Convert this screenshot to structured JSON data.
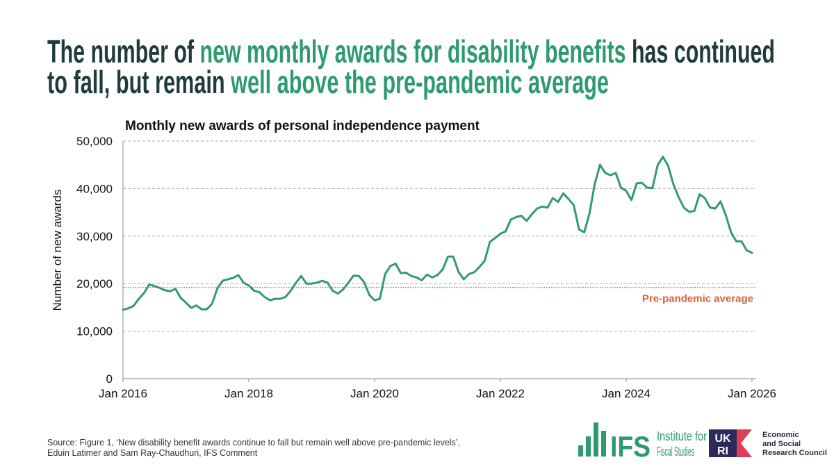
{
  "title_lines": [
    [
      {
        "text": "The number of ",
        "color": "#1f3b3c"
      },
      {
        "text": "new monthly awards for disability benefits",
        "color": "#2e9a6e"
      },
      {
        "text": " has continued",
        "color": "#1f3b3c"
      }
    ],
    [
      {
        "text": "to fall, but remain ",
        "color": "#1f3b3c"
      },
      {
        "text": "well above the pre-pandemic average",
        "color": "#2e9a6e"
      }
    ]
  ],
  "chart_data": {
    "type": "line",
    "title": "Monthly new awards of personal independence payment",
    "ylabel": "Number of new awards",
    "color": "#339a6f",
    "ylim": [
      0,
      50000
    ],
    "yticks": [
      0,
      {
        "value": 10000,
        "label": "10,000"
      },
      {
        "value": 20000,
        "label": "20,000"
      },
      {
        "value": 30000,
        "label": "30,000"
      },
      {
        "value": 40000,
        "label": "40,000"
      },
      {
        "value": 50000,
        "label": "50,000"
      }
    ],
    "xlim": [
      "2016-01",
      "2026-01"
    ],
    "xticks": [
      {
        "value": "2016-01",
        "label": "Jan 2016"
      },
      {
        "value": "2018-01",
        "label": "Jan 2018"
      },
      {
        "value": "2020-01",
        "label": "Jan 2020"
      },
      {
        "value": "2022-01",
        "label": "Jan 2022"
      },
      {
        "value": "2024-01",
        "label": "Jan 2024"
      },
      {
        "value": "2026-01",
        "label": "Jan 2026"
      }
    ],
    "grid": true,
    "x": [
      "2016-01",
      "2016-02",
      "2016-03",
      "2016-04",
      "2016-05",
      "2016-06",
      "2016-07",
      "2016-08",
      "2016-09",
      "2016-10",
      "2016-11",
      "2016-12",
      "2017-01",
      "2017-02",
      "2017-03",
      "2017-04",
      "2017-05",
      "2017-06",
      "2017-07",
      "2017-08",
      "2017-09",
      "2017-10",
      "2017-11",
      "2017-12",
      "2018-01",
      "2018-02",
      "2018-03",
      "2018-04",
      "2018-05",
      "2018-06",
      "2018-07",
      "2018-08",
      "2018-09",
      "2018-10",
      "2018-11",
      "2018-12",
      "2019-01",
      "2019-02",
      "2019-03",
      "2019-04",
      "2019-05",
      "2019-06",
      "2019-07",
      "2019-08",
      "2019-09",
      "2019-10",
      "2019-11",
      "2019-12",
      "2020-01",
      "2020-02",
      "2020-03",
      "2020-04",
      "2020-05",
      "2020-06",
      "2020-07",
      "2020-08",
      "2020-09",
      "2020-10",
      "2020-11",
      "2020-12",
      "2021-01",
      "2021-02",
      "2021-03",
      "2021-04",
      "2021-05",
      "2021-06",
      "2021-07",
      "2021-08",
      "2021-09",
      "2021-10",
      "2021-11",
      "2021-12",
      "2022-01",
      "2022-02",
      "2022-03",
      "2022-04",
      "2022-05",
      "2022-06",
      "2022-07",
      "2022-08",
      "2022-09",
      "2022-10",
      "2022-11",
      "2022-12",
      "2023-01",
      "2023-02",
      "2023-03",
      "2023-04",
      "2023-05",
      "2023-06",
      "2023-07",
      "2023-08",
      "2023-09",
      "2023-10",
      "2023-11",
      "2023-12",
      "2024-01",
      "2024-02",
      "2024-03",
      "2024-04",
      "2024-05",
      "2024-06",
      "2024-07",
      "2024-08",
      "2024-09",
      "2024-10",
      "2024-11",
      "2024-12",
      "2025-01",
      "2025-02",
      "2025-03",
      "2025-04",
      "2025-05",
      "2025-06",
      "2025-07",
      "2025-08",
      "2025-09",
      "2025-10",
      "2025-11",
      "2025-12",
      "2026-01"
    ],
    "values": [
      14500,
      14800,
      15300,
      16800,
      18000,
      19800,
      19500,
      19100,
      18600,
      18400,
      18900,
      17000,
      16000,
      14900,
      15400,
      14600,
      14600,
      15800,
      19000,
      20600,
      20900,
      21200,
      21800,
      20200,
      19600,
      18500,
      18200,
      17200,
      16500,
      16800,
      16800,
      17200,
      18500,
      20200,
      21600,
      20000,
      20000,
      20200,
      20600,
      20200,
      18500,
      17900,
      18800,
      20200,
      21700,
      21600,
      20300,
      17600,
      16500,
      16800,
      22000,
      23700,
      24200,
      22200,
      22300,
      21600,
      21300,
      20700,
      21900,
      21300,
      21800,
      23000,
      25700,
      25700,
      22500,
      20900,
      22000,
      22400,
      23500,
      24800,
      28800,
      29600,
      30500,
      31000,
      33500,
      34000,
      34300,
      33200,
      34600,
      35800,
      36200,
      36000,
      38000,
      37200,
      39000,
      37800,
      36500,
      31400,
      30800,
      34800,
      41000,
      45000,
      43300,
      42800,
      43300,
      40200,
      39500,
      37600,
      41100,
      41200,
      40200,
      40100,
      44900,
      46700,
      44800,
      40900,
      38200,
      36000,
      35100,
      35300,
      38800,
      38000,
      36000,
      35800,
      37300,
      34400,
      30800,
      28900,
      28900,
      27000,
      26500
    ],
    "reference_line": {
      "value": 19200,
      "label": "Pre-pandemic average",
      "color": "#d9603b"
    }
  },
  "source": [
    "Source: Figure 1, ‘New disability benefit awards continue to fall but remain well above pre-pandemic levels’,",
    "Eduin Latimer and Sam Ray-Chaudhuri, IFS Comment"
  ],
  "logos": {
    "ifs": {
      "mark": "IFS",
      "name": [
        "Institute for",
        "Fiscal Studies"
      ]
    },
    "ukri": {
      "mark": [
        "UK",
        "RI"
      ],
      "name": [
        "Economic",
        "and Social",
        "Research Council"
      ]
    }
  }
}
